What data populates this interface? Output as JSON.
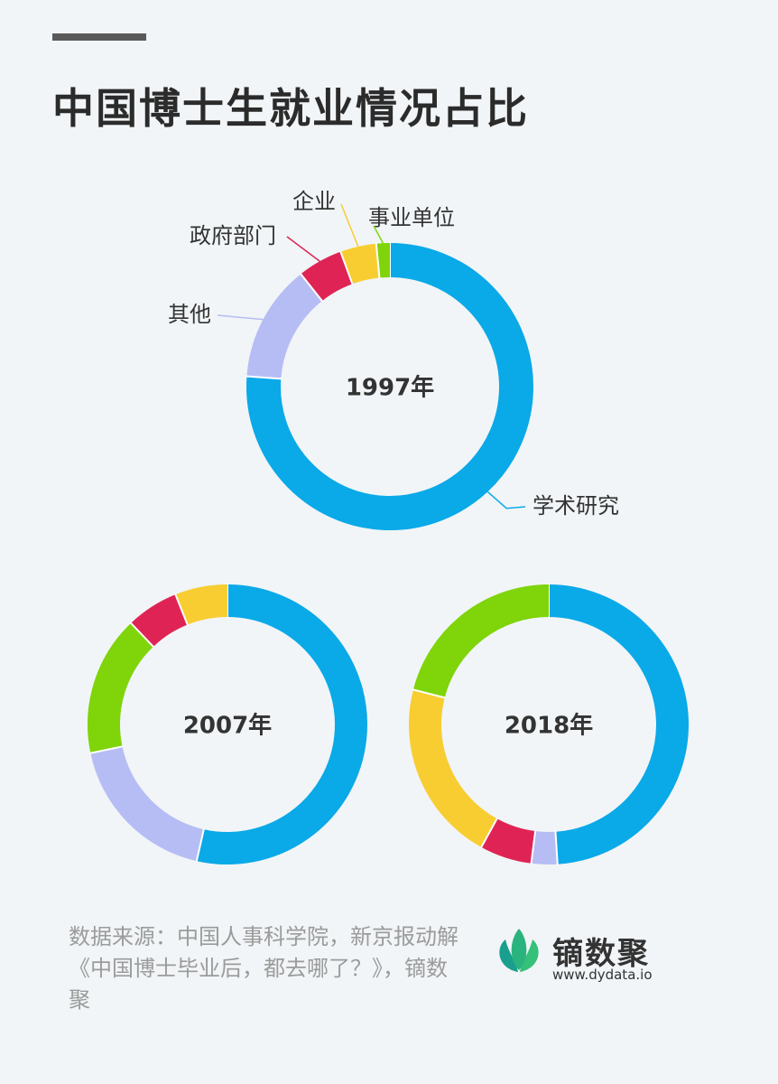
{
  "title": "中国博士生就业情况占比",
  "colors": {
    "学术研究": "#0aa9e8",
    "其他": "#b6bdf5",
    "政府部门": "#df2455",
    "企业": "#f8cd31",
    "事业单位": "#7fd40a"
  },
  "chart_data": [
    {
      "type": "pie",
      "title": "1997年",
      "categories": [
        "学术研究",
        "其他",
        "政府部门",
        "企业",
        "事业单位"
      ],
      "values": [
        75,
        13,
        5,
        4,
        1.5
      ]
    },
    {
      "type": "pie",
      "title": "2007年",
      "categories": [
        "学术研究",
        "其他",
        "事业单位",
        "政府部门",
        "企业"
      ],
      "values": [
        53,
        18,
        16,
        6,
        6
      ]
    },
    {
      "type": "pie",
      "title": "2018年",
      "categories": [
        "学术研究",
        "其他",
        "政府部门",
        "企业",
        "事业单位"
      ],
      "values": [
        49,
        3,
        6,
        21,
        21
      ]
    }
  ],
  "source": "数据来源：中国人事科学院，新京报动解《中国博士毕业后，都去哪了？》，镝数聚",
  "logo": {
    "name": "镝数聚",
    "url": "www.dydata.io"
  }
}
